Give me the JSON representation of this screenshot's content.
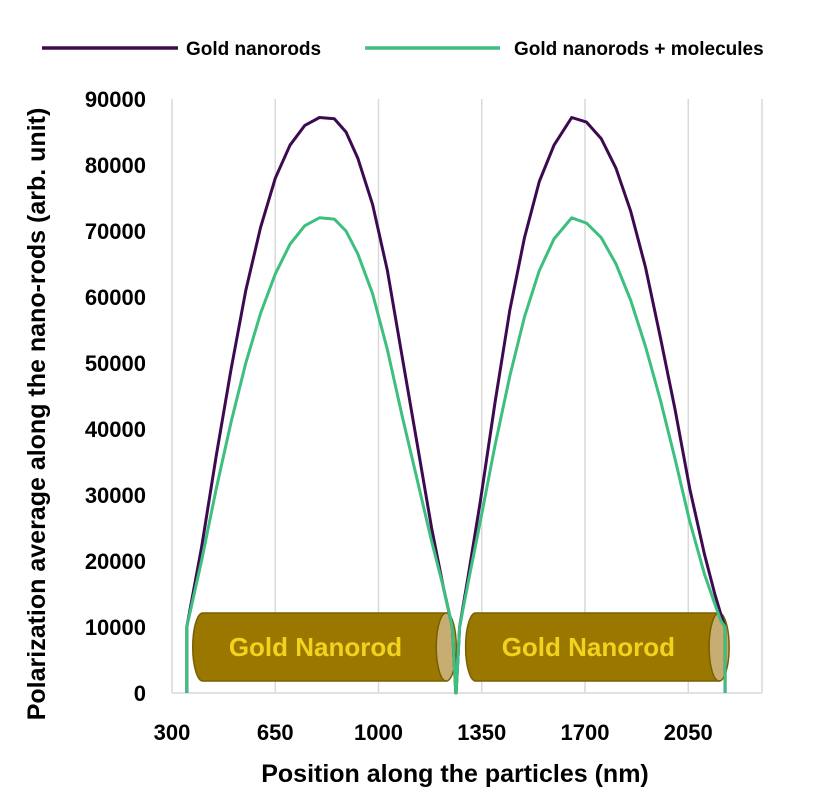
{
  "chart_data": {
    "type": "line",
    "xlabel": "Position along the particles (nm)",
    "ylabel": "Polarization average along the nano-rods (arb. unit)",
    "xlim": [
      300,
      2300
    ],
    "ylim": [
      0,
      90000
    ],
    "x_ticks": [
      300,
      650,
      1000,
      1350,
      1700,
      2050
    ],
    "y_ticks": [
      0,
      10000,
      20000,
      30000,
      40000,
      50000,
      60000,
      70000,
      80000,
      90000
    ],
    "grid": "vertical",
    "legend": "top",
    "series": [
      {
        "name": "Gold nanorods",
        "color": "#3d0a52",
        "x": [
          350,
          350,
          400,
          450,
          500,
          550,
          600,
          650,
          700,
          750,
          800,
          850,
          890,
          930,
          980,
          1030,
          1080,
          1130,
          1180,
          1220,
          1250,
          1262,
          1263,
          1275,
          1305,
          1345,
          1395,
          1445,
          1495,
          1545,
          1595,
          1655,
          1705,
          1755,
          1805,
          1855,
          1905,
          1955,
          2005,
          2055,
          2105,
          2140,
          2160,
          2175,
          2175
        ],
        "y": [
          0,
          10000,
          22000,
          36000,
          49000,
          61000,
          70500,
          78000,
          83000,
          86000,
          87200,
          87000,
          85000,
          81000,
          74000,
          64000,
          51000,
          38000,
          25000,
          16000,
          10000,
          0,
          0,
          10000,
          18000,
          29000,
          44000,
          58000,
          69000,
          77500,
          83000,
          87200,
          86500,
          84000,
          79500,
          73000,
          64500,
          54000,
          43000,
          31000,
          21000,
          15000,
          12000,
          10000,
          0
        ]
      },
      {
        "name": "Gold nanorods + molecules",
        "color": "#3dbf7f",
        "x": [
          350,
          350,
          400,
          450,
          500,
          550,
          600,
          650,
          700,
          750,
          800,
          850,
          890,
          930,
          980,
          1030,
          1080,
          1130,
          1180,
          1220,
          1250,
          1262,
          1263,
          1275,
          1305,
          1345,
          1395,
          1445,
          1495,
          1545,
          1595,
          1655,
          1705,
          1755,
          1805,
          1855,
          1905,
          1955,
          2005,
          2055,
          2105,
          2140,
          2160,
          2175,
          2175
        ],
        "y": [
          0,
          10000,
          20000,
          31000,
          41000,
          50000,
          57500,
          63500,
          68000,
          70800,
          72000,
          71800,
          70000,
          66500,
          60500,
          52000,
          42000,
          32500,
          23000,
          16000,
          10000,
          0,
          0,
          10000,
          17000,
          26000,
          37500,
          48000,
          57000,
          64000,
          68800,
          72000,
          71200,
          69000,
          65000,
          59500,
          52500,
          44500,
          35500,
          26000,
          18000,
          13500,
          11000,
          10000,
          0
        ]
      }
    ],
    "annotations": [
      {
        "text": "Gold Nanorod",
        "x_start": 350,
        "x_end": 1250,
        "y_low": 0,
        "y_high": 10000
      },
      {
        "text": "Gold Nanorod",
        "x_start": 1275,
        "x_end": 2175,
        "y_low": 0,
        "y_high": 10000
      }
    ],
    "rod_colors": {
      "body": "#9a7800",
      "cap": "#c8ad72",
      "text": "#f2d21c",
      "edge": "#7a5e00"
    }
  }
}
